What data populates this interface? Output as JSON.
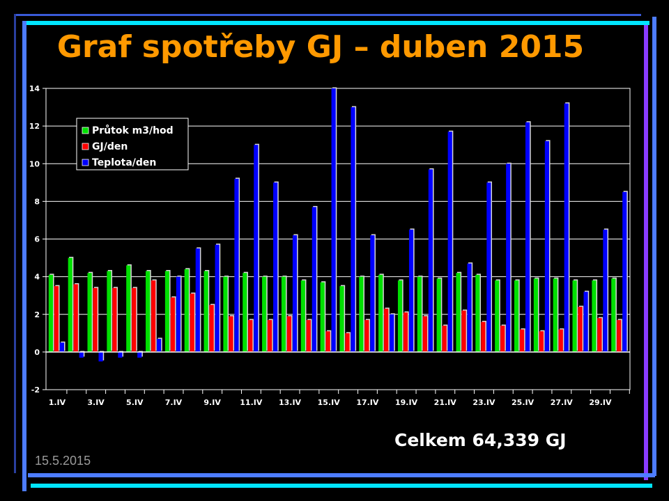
{
  "slide": {
    "title": "Graf spotřeby GJ – duben 2015",
    "total": "Celkem 64,339 GJ",
    "date": "15.5.2015"
  },
  "colors": {
    "background": "#000000",
    "title": "#FF9900",
    "frame_cyan": "#00E5FF",
    "frame_blue": "#4D7CFF",
    "frame_violet": "#8A3CFF",
    "grid": "#FFFFFF"
  },
  "chart_data": {
    "type": "bar",
    "ylim": [
      -2,
      14
    ],
    "yticks": [
      -2,
      0,
      2,
      4,
      6,
      8,
      10,
      12,
      14
    ],
    "grid": true,
    "legend_position": "top-left",
    "categories": [
      "1.IV",
      "2.IV",
      "3.IV",
      "4.IV",
      "5.IV",
      "6.IV",
      "7.IV",
      "8.IV",
      "9.IV",
      "10.IV",
      "11.IV",
      "12.IV",
      "13.IV",
      "14.IV",
      "15.IV",
      "16.IV",
      "17.IV",
      "18.IV",
      "19.IV",
      "20.IV",
      "21.IV",
      "22.IV",
      "23.IV",
      "24.IV",
      "25.IV",
      "26.IV",
      "27.IV",
      "28.IV",
      "29.IV",
      "30.IV"
    ],
    "xtick_labels": [
      "1.IV",
      "3.IV",
      "5.IV",
      "7.IV",
      "9.IV",
      "11.IV",
      "13.IV",
      "15.IV",
      "17.IV",
      "19.IV",
      "21.IV",
      "23.IV",
      "25.IV",
      "27.IV",
      "29.IV"
    ],
    "series": [
      {
        "name": "Průtok m3/hod",
        "color": "#00E000",
        "values": [
          4.1,
          5.0,
          4.2,
          4.3,
          4.6,
          4.3,
          4.3,
          4.4,
          4.3,
          4.0,
          4.2,
          4.0,
          4.0,
          3.8,
          3.7,
          3.5,
          4.0,
          4.1,
          3.8,
          4.0,
          3.9,
          4.2,
          4.1,
          3.8,
          3.8,
          3.9,
          3.9,
          3.8,
          3.8,
          3.9
        ]
      },
      {
        "name": "GJ/den",
        "color": "#FF0000",
        "values": [
          3.5,
          3.6,
          3.4,
          3.4,
          3.4,
          3.8,
          2.9,
          3.1,
          2.5,
          1.9,
          1.7,
          1.7,
          1.9,
          1.7,
          1.1,
          1.0,
          1.7,
          2.3,
          2.1,
          1.9,
          1.4,
          2.2,
          1.6,
          1.4,
          1.2,
          1.1,
          1.2,
          2.4,
          1.8,
          1.7
        ]
      },
      {
        "name": "Teplota/den",
        "color": "#0000FF",
        "values": [
          0.5,
          -0.3,
          -0.5,
          -0.3,
          -0.3,
          0.7,
          4.0,
          5.5,
          5.7,
          9.2,
          11.0,
          9.0,
          6.2,
          7.7,
          14.0,
          13.0,
          6.2,
          2.0,
          6.5,
          9.7,
          11.7,
          4.7,
          9.0,
          10.0,
          12.2,
          11.2,
          13.2,
          3.2,
          6.5,
          8.5
        ]
      }
    ]
  }
}
